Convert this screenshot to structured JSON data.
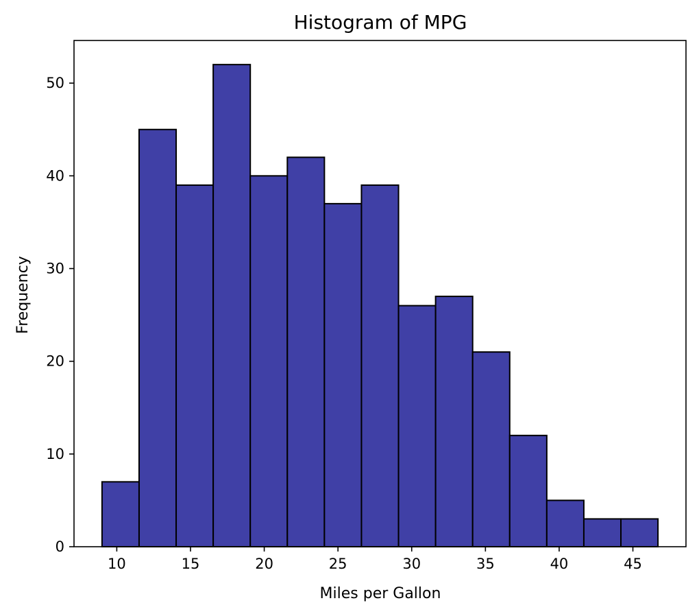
{
  "chart_data": {
    "type": "bar",
    "title": "Histogram of MPG",
    "xlabel": "Miles per Gallon",
    "ylabel": "Frequency",
    "bin_edges": [
      9.0,
      11.5133,
      14.0267,
      16.54,
      19.0533,
      21.5667,
      24.08,
      26.5933,
      29.1067,
      31.62,
      34.1333,
      36.6467,
      39.16,
      41.6733,
      44.1867,
      46.7
    ],
    "values": [
      7,
      45,
      39,
      52,
      40,
      42,
      37,
      39,
      26,
      27,
      21,
      12,
      5,
      3,
      3
    ],
    "xlim": [
      7.1,
      48.6
    ],
    "ylim": [
      0,
      54.6
    ],
    "xticks": [
      10,
      15,
      20,
      25,
      30,
      35,
      40,
      45
    ],
    "yticks": [
      0,
      10,
      20,
      30,
      40,
      50
    ],
    "bar_color": "#4040a6",
    "edge_color": "#000000",
    "grid": false,
    "legend": "none"
  }
}
